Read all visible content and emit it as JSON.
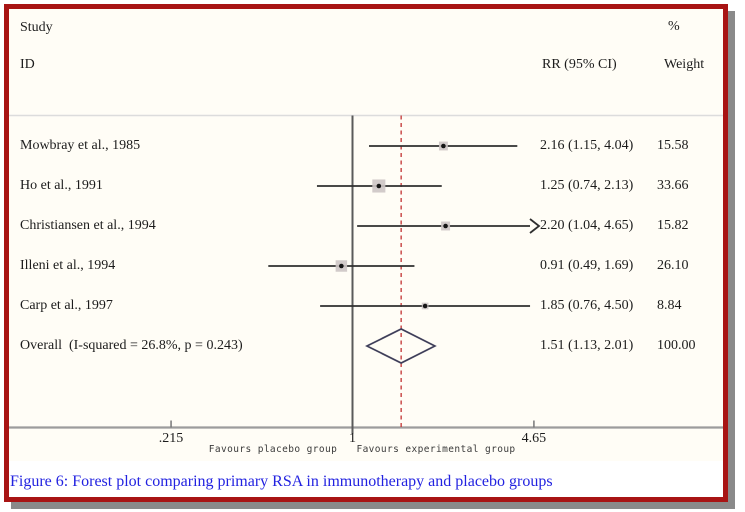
{
  "header": {
    "study": "Study",
    "id": "ID",
    "percent": "%",
    "rr_ci": "RR (95% CI)",
    "weight": "Weight"
  },
  "axis": {
    "ticks": [
      {
        "label": ".215",
        "value": 0.215
      },
      {
        "label": "1",
        "value": 1
      },
      {
        "label": "4.65",
        "value": 4.65
      }
    ],
    "left_label": "Favours placebo group",
    "right_label": "Favours experimental group"
  },
  "caption": "Figure 6: Forest plot comparing primary RSA in immunotherapy and placebo groups",
  "colors": {
    "frame_border": "#a81414",
    "drop_shadow": "#8a8a8a",
    "caption_text": "#2222e0",
    "plot_bg": "#fffdf6",
    "top_rule": "#dcdcdc",
    "axis_line": "#9c9c9c",
    "ref_line": "#5a5a5a",
    "overall_dashed_line": "#c23232",
    "ci_line": "#2f2f2f",
    "marker_box": "#cdc5c5",
    "marker_dot": "#151515",
    "diamond_outline": "#3f3f5a",
    "tick": "#777777"
  },
  "chart_data": {
    "type": "forest",
    "x_scale": "log",
    "reference_value": 1,
    "xlim_displayed": [
      0.215,
      4.65
    ],
    "studies": [
      {
        "label": "Mowbray et al., 1985",
        "rr": 2.16,
        "ci_low": 1.15,
        "ci_high": 4.04,
        "weight": 15.58,
        "rr_text": "2.16 (1.15, 4.04)",
        "weight_text": "15.58",
        "arrow": false
      },
      {
        "label": "Ho et al., 1991",
        "rr": 1.25,
        "ci_low": 0.74,
        "ci_high": 2.13,
        "weight": 33.66,
        "rr_text": "1.25 (0.74, 2.13)",
        "weight_text": "33.66",
        "arrow": false
      },
      {
        "label": "Christiansen et al., 1994",
        "rr": 2.2,
        "ci_low": 1.04,
        "ci_high": 4.65,
        "weight": 15.82,
        "rr_text": "2.20 (1.04, 4.65)",
        "weight_text": "15.82",
        "arrow": true
      },
      {
        "label": "Illeni et al., 1994",
        "rr": 0.91,
        "ci_low": 0.49,
        "ci_high": 1.69,
        "weight": 26.1,
        "rr_text": "0.91 (0.49, 1.69)",
        "weight_text": "26.10",
        "arrow": false
      },
      {
        "label": "Carp et al., 1997",
        "rr": 1.85,
        "ci_low": 0.76,
        "ci_high": 4.5,
        "weight": 8.84,
        "rr_text": "1.85 (0.76, 4.50)",
        "weight_text": "8.84",
        "arrow": false
      }
    ],
    "overall": {
      "label": "Overall  (I-squared = 26.8%, p = 0.243)",
      "rr": 1.51,
      "ci_low": 1.13,
      "ci_high": 2.01,
      "rr_text": "1.51 (1.13, 2.01)",
      "weight_text": "100.00"
    }
  }
}
